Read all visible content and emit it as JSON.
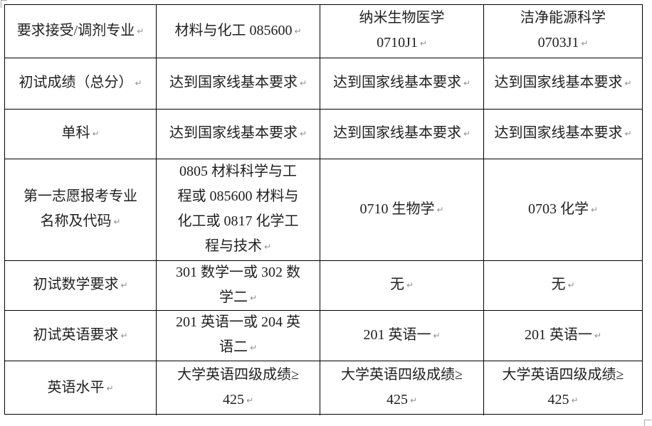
{
  "table": {
    "return_mark": "↵",
    "rows": [
      {
        "cells": [
          {
            "lines": [
              "要求接受/调剂专业"
            ]
          },
          {
            "lines": [
              "材料与化工 085600"
            ]
          },
          {
            "lines": [
              "纳米生物医学",
              "0710J1"
            ]
          },
          {
            "lines": [
              "洁净能源科学",
              "0703J1"
            ]
          }
        ]
      },
      {
        "cells": [
          {
            "lines": [
              "初试成绩（总分）"
            ]
          },
          {
            "lines": [
              "达到国家线基本要求"
            ]
          },
          {
            "lines": [
              "达到国家线基本要求"
            ]
          },
          {
            "lines": [
              "达到国家线基本要求"
            ]
          }
        ]
      },
      {
        "cells": [
          {
            "lines": [
              "单科"
            ]
          },
          {
            "lines": [
              "达到国家线基本要求"
            ]
          },
          {
            "lines": [
              "达到国家线基本要求"
            ]
          },
          {
            "lines": [
              "达到国家线基本要求"
            ]
          }
        ]
      },
      {
        "cells": [
          {
            "lines": [
              "第一志愿报考专业",
              "名称及代码"
            ]
          },
          {
            "lines": [
              "0805 材料科学与工",
              "程或 085600 材料与",
              "化工或 0817 化学工",
              "程与技术"
            ]
          },
          {
            "lines": [
              "0710 生物学"
            ]
          },
          {
            "lines": [
              "0703 化学"
            ]
          }
        ]
      },
      {
        "cells": [
          {
            "lines": [
              "初试数学要求"
            ]
          },
          {
            "lines": [
              "301 数学一或 302 数",
              "学二"
            ]
          },
          {
            "lines": [
              "无"
            ]
          },
          {
            "lines": [
              "无"
            ]
          }
        ]
      },
      {
        "cells": [
          {
            "lines": [
              "初试英语要求"
            ]
          },
          {
            "lines": [
              "201 英语一或 204 英",
              "语二"
            ]
          },
          {
            "lines": [
              "201 英语一"
            ]
          },
          {
            "lines": [
              "201 英语一"
            ]
          }
        ]
      },
      {
        "cells": [
          {
            "lines": [
              "英语水平"
            ]
          },
          {
            "lines": [
              "大学英语四级成绩≥",
              "425"
            ]
          },
          {
            "lines": [
              "大学英语四级成绩≥",
              "425"
            ]
          },
          {
            "lines": [
              "大学英语四级成绩≥",
              "425"
            ]
          }
        ]
      }
    ]
  }
}
